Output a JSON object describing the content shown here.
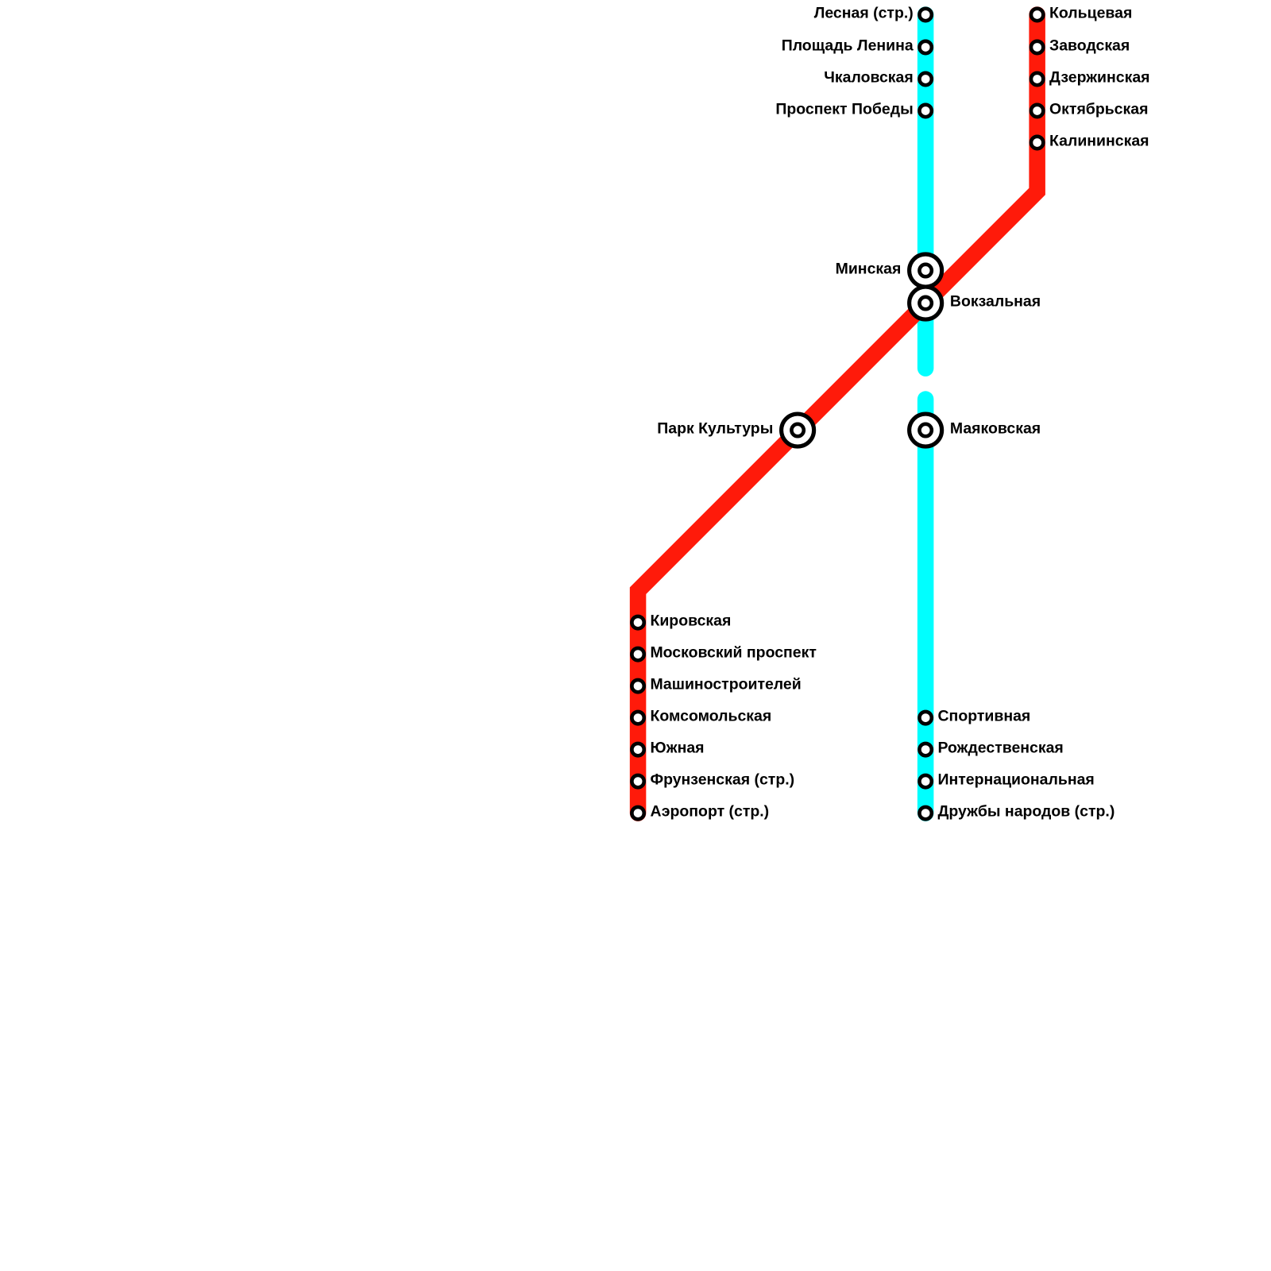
{
  "lines": [
    {
      "color": "#ff1a0a",
      "stations": [
        {
          "name": "Кольцевая"
        },
        {
          "name": "Заводская"
        },
        {
          "name": "Дзержинская"
        },
        {
          "name": "Октябрьская"
        },
        {
          "name": "Калининская"
        },
        {
          "name": "Вокзальная"
        },
        {
          "name": "Парк Культуры"
        },
        {
          "name": "Кировская"
        },
        {
          "name": "Московский проспект"
        },
        {
          "name": "Машиностроителей"
        },
        {
          "name": "Комсомольская"
        },
        {
          "name": "Южная"
        },
        {
          "name": "Фрунзенская (стр.)"
        },
        {
          "name": "Аэропорт (стр.)"
        }
      ]
    },
    {
      "color": "#00ffff",
      "stations": [
        {
          "name": "Лесная (стр.)"
        },
        {
          "name": "Площадь Ленина"
        },
        {
          "name": "Чкаловская"
        },
        {
          "name": "Проспект Победы"
        },
        {
          "name": "Минская"
        },
        {
          "name": "Маяковская"
        },
        {
          "name": "Спортивная"
        },
        {
          "name": "Рождественская"
        },
        {
          "name": "Интернациональная"
        },
        {
          "name": "Дружбы народов (стр.)"
        }
      ]
    }
  ]
}
